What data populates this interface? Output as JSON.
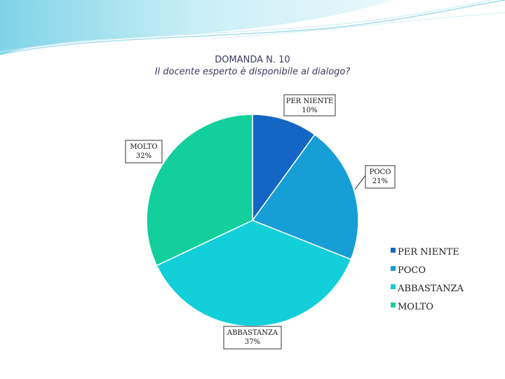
{
  "chart_data": {
    "type": "pie",
    "title": "DOMANDA N. 10",
    "subtitle": "Il docente esperto è disponibile al dialogo?",
    "categories": [
      "PER NIENTE",
      "POCO",
      "ABBASTANZA",
      "MOLTO"
    ],
    "values": [
      10,
      21,
      37,
      32
    ],
    "value_labels": [
      "10%",
      "21%",
      "37%",
      "32%"
    ],
    "colors": [
      "#1466c4",
      "#169ed6",
      "#12cfd9",
      "#12cf9c"
    ],
    "legend_position": "bottom-right"
  }
}
